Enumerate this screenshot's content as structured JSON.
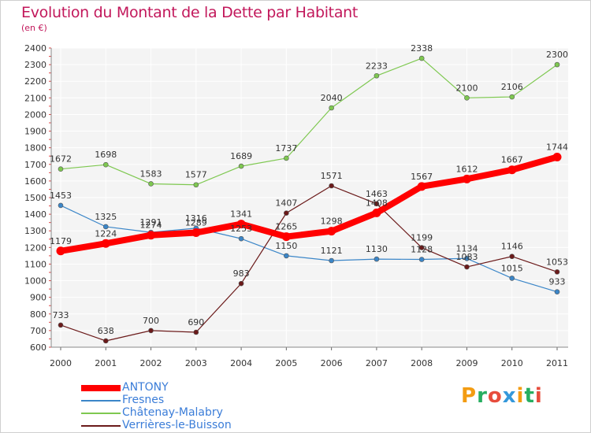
{
  "title": "Evolution du Montant de la Dette par Habitant",
  "subtitle": "(en €)",
  "brand": {
    "text": "Proxiti",
    "colors": [
      "#f39c12",
      "#27ae60",
      "#e74c3c",
      "#3498db",
      "#f39c12",
      "#27ae60",
      "#e74c3c"
    ]
  },
  "chart_data": {
    "type": "line",
    "categories": [
      "2000",
      "2001",
      "2002",
      "2003",
      "2004",
      "2005",
      "2006",
      "2007",
      "2008",
      "2009",
      "2010",
      "2011"
    ],
    "ylim": [
      600,
      2400
    ],
    "yticks": [
      600,
      700,
      800,
      900,
      1000,
      1100,
      1200,
      1300,
      1400,
      1500,
      1600,
      1700,
      1800,
      1900,
      2000,
      2100,
      2200,
      2300,
      2400
    ],
    "grid": true,
    "legend_position": "bottom-left",
    "series": [
      {
        "name": "ANTONY",
        "color": "#ff0000",
        "values": [
          1179,
          1224,
          1274,
          1289,
          1341,
          1265,
          1298,
          1408,
          1567,
          1612,
          1667,
          1744
        ]
      },
      {
        "name": "Fresnes",
        "color": "#3b86c8",
        "values": [
          1453,
          1325,
          1291,
          1316,
          1253,
          1150,
          1121,
          1130,
          1128,
          1134,
          1015,
          933
        ]
      },
      {
        "name": "Châtenay-Malabry",
        "color": "#7ec850",
        "values": [
          1672,
          1698,
          1583,
          1577,
          1689,
          1737,
          2040,
          2233,
          2338,
          2100,
          2106,
          2300
        ]
      },
      {
        "name": "Verrières-le-Buisson",
        "color": "#6b1a1a",
        "values": [
          733,
          638,
          700,
          690,
          983,
          1407,
          1571,
          1463,
          1199,
          1083,
          1146,
          1053
        ]
      }
    ]
  }
}
